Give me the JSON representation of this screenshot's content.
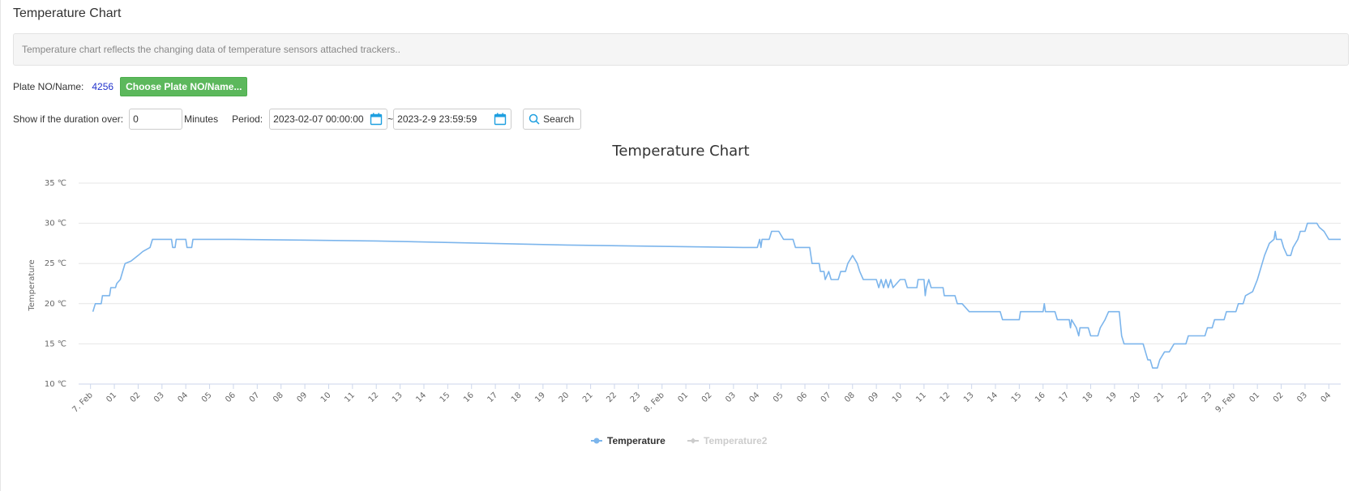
{
  "page": {
    "title": "Temperature Chart",
    "info_text": "Temperature chart reflects the changing data of temperature sensors attached trackers.."
  },
  "plate": {
    "label": "Plate NO/Name:",
    "value": "4256",
    "choose_button": "Choose Plate NO/Name..."
  },
  "filter": {
    "duration_label": "Show if the duration over:",
    "duration_value": "0",
    "minutes_label": "Minutes",
    "period_label": "Period:",
    "start_date": "2023-02-07 00:00:00",
    "separator": "~",
    "end_date": "2023-2-9 23:59:59",
    "search_button": "Search"
  },
  "colors": {
    "series": "#7cb5ec",
    "series_inactive": "#cccccc",
    "grid": "#e6e6e6",
    "button_green": "#5cb85c",
    "calendar": "#1e9fe0"
  },
  "icons": {
    "calendar": "calendar-icon",
    "search": "search-icon"
  },
  "chart_data": {
    "type": "line",
    "title": "Temperature Chart",
    "ylabel": "Temperature",
    "ylim": [
      10,
      35
    ],
    "y_ticks": [
      "10 ℃",
      "15 ℃",
      "20 ℃",
      "25 ℃",
      "30 ℃",
      "35 ℃"
    ],
    "grid": true,
    "legend_position": "bottom-center",
    "x_range_hours": [
      -0.5,
      52.5
    ],
    "x_ticks": [
      {
        "h": 0,
        "label": "7. Feb"
      },
      {
        "h": 1,
        "label": "01"
      },
      {
        "h": 2,
        "label": "02"
      },
      {
        "h": 3,
        "label": "03"
      },
      {
        "h": 4,
        "label": "04"
      },
      {
        "h": 5,
        "label": "05"
      },
      {
        "h": 6,
        "label": "06"
      },
      {
        "h": 7,
        "label": "07"
      },
      {
        "h": 8,
        "label": "08"
      },
      {
        "h": 9,
        "label": "09"
      },
      {
        "h": 10,
        "label": "10"
      },
      {
        "h": 11,
        "label": "11"
      },
      {
        "h": 12,
        "label": "12"
      },
      {
        "h": 13,
        "label": "13"
      },
      {
        "h": 14,
        "label": "14"
      },
      {
        "h": 15,
        "label": "15"
      },
      {
        "h": 16,
        "label": "16"
      },
      {
        "h": 17,
        "label": "17"
      },
      {
        "h": 18,
        "label": "18"
      },
      {
        "h": 19,
        "label": "19"
      },
      {
        "h": 20,
        "label": "20"
      },
      {
        "h": 21,
        "label": "21"
      },
      {
        "h": 22,
        "label": "22"
      },
      {
        "h": 23,
        "label": "23"
      },
      {
        "h": 24,
        "label": "8. Feb"
      },
      {
        "h": 25,
        "label": "01"
      },
      {
        "h": 26,
        "label": "02"
      },
      {
        "h": 27,
        "label": "03"
      },
      {
        "h": 28,
        "label": "04"
      },
      {
        "h": 29,
        "label": "05"
      },
      {
        "h": 30,
        "label": "06"
      },
      {
        "h": 31,
        "label": "07"
      },
      {
        "h": 32,
        "label": "08"
      },
      {
        "h": 33,
        "label": "09"
      },
      {
        "h": 34,
        "label": "10"
      },
      {
        "h": 35,
        "label": "11"
      },
      {
        "h": 36,
        "label": "12"
      },
      {
        "h": 37,
        "label": "13"
      },
      {
        "h": 38,
        "label": "14"
      },
      {
        "h": 39,
        "label": "15"
      },
      {
        "h": 40,
        "label": "16"
      },
      {
        "h": 41,
        "label": "17"
      },
      {
        "h": 42,
        "label": "18"
      },
      {
        "h": 43,
        "label": "19"
      },
      {
        "h": 44,
        "label": "20"
      },
      {
        "h": 45,
        "label": "21"
      },
      {
        "h": 46,
        "label": "22"
      },
      {
        "h": 47,
        "label": "23"
      },
      {
        "h": 48,
        "label": "9. Feb"
      },
      {
        "h": 49,
        "label": "01"
      },
      {
        "h": 50,
        "label": "02"
      },
      {
        "h": 51,
        "label": "03"
      },
      {
        "h": 52,
        "label": "04"
      }
    ],
    "series": [
      {
        "name": "Temperature",
        "visible": true,
        "points": [
          [
            0.1,
            19
          ],
          [
            0.2,
            20
          ],
          [
            0.45,
            20
          ],
          [
            0.5,
            21
          ],
          [
            0.8,
            21
          ],
          [
            0.85,
            22
          ],
          [
            1.05,
            22
          ],
          [
            1.1,
            22.5
          ],
          [
            1.25,
            23
          ],
          [
            1.35,
            24
          ],
          [
            1.45,
            25
          ],
          [
            1.7,
            25.3
          ],
          [
            2.0,
            26
          ],
          [
            2.2,
            26.5
          ],
          [
            2.5,
            27
          ],
          [
            2.6,
            28
          ],
          [
            3.4,
            28
          ],
          [
            3.45,
            27
          ],
          [
            3.55,
            27
          ],
          [
            3.6,
            28
          ],
          [
            4.0,
            28
          ],
          [
            4.05,
            27
          ],
          [
            4.25,
            27
          ],
          [
            4.3,
            28
          ],
          [
            6.0,
            28
          ],
          [
            12.0,
            27.8
          ],
          [
            20.0,
            27.3
          ],
          [
            27.4,
            27
          ],
          [
            28.0,
            27
          ],
          [
            28.1,
            28
          ],
          [
            28.15,
            27
          ],
          [
            28.2,
            28
          ],
          [
            28.5,
            28
          ],
          [
            28.6,
            29
          ],
          [
            28.9,
            29
          ],
          [
            29.1,
            28
          ],
          [
            29.5,
            28
          ],
          [
            29.6,
            27
          ],
          [
            30.2,
            27
          ],
          [
            30.3,
            25
          ],
          [
            30.6,
            25
          ],
          [
            30.65,
            24
          ],
          [
            30.8,
            24
          ],
          [
            30.85,
            23
          ],
          [
            31.0,
            24
          ],
          [
            31.1,
            23
          ],
          [
            31.4,
            23
          ],
          [
            31.5,
            24
          ],
          [
            31.7,
            24
          ],
          [
            31.8,
            25
          ],
          [
            32.0,
            26
          ],
          [
            32.2,
            25
          ],
          [
            32.3,
            24
          ],
          [
            32.45,
            23
          ],
          [
            33.0,
            23
          ],
          [
            33.1,
            22
          ],
          [
            33.2,
            23
          ],
          [
            33.3,
            22
          ],
          [
            33.4,
            23
          ],
          [
            33.5,
            22
          ],
          [
            33.6,
            23
          ],
          [
            33.7,
            22
          ],
          [
            34.0,
            23
          ],
          [
            34.2,
            23
          ],
          [
            34.3,
            22
          ],
          [
            34.7,
            22
          ],
          [
            34.75,
            23
          ],
          [
            35.0,
            23
          ],
          [
            35.05,
            21
          ],
          [
            35.1,
            22
          ],
          [
            35.2,
            23
          ],
          [
            35.3,
            22
          ],
          [
            35.8,
            22
          ],
          [
            35.85,
            21
          ],
          [
            36.3,
            21
          ],
          [
            36.4,
            20
          ],
          [
            36.6,
            20
          ],
          [
            36.9,
            19
          ],
          [
            38.2,
            19
          ],
          [
            38.3,
            18
          ],
          [
            39.0,
            18
          ],
          [
            39.05,
            19
          ],
          [
            40.0,
            19
          ],
          [
            40.05,
            20
          ],
          [
            40.1,
            19
          ],
          [
            40.5,
            19
          ],
          [
            40.6,
            18
          ],
          [
            41.1,
            18
          ],
          [
            41.15,
            17
          ],
          [
            41.2,
            18
          ],
          [
            41.4,
            17
          ],
          [
            41.5,
            16
          ],
          [
            41.55,
            17
          ],
          [
            41.9,
            17
          ],
          [
            42.0,
            16
          ],
          [
            42.3,
            16
          ],
          [
            42.4,
            17
          ],
          [
            42.6,
            18
          ],
          [
            42.75,
            19
          ],
          [
            43.2,
            19
          ],
          [
            43.3,
            16
          ],
          [
            43.4,
            15
          ],
          [
            44.2,
            15
          ],
          [
            44.3,
            14
          ],
          [
            44.4,
            13
          ],
          [
            44.5,
            13
          ],
          [
            44.6,
            12
          ],
          [
            44.8,
            12
          ],
          [
            44.9,
            13
          ],
          [
            45.1,
            14
          ],
          [
            45.3,
            14
          ],
          [
            45.5,
            15
          ],
          [
            46.0,
            15
          ],
          [
            46.1,
            16
          ],
          [
            46.8,
            16
          ],
          [
            46.9,
            17
          ],
          [
            47.1,
            17
          ],
          [
            47.2,
            18
          ],
          [
            47.6,
            18
          ],
          [
            47.7,
            19
          ],
          [
            48.1,
            19
          ],
          [
            48.2,
            20
          ],
          [
            48.4,
            20
          ],
          [
            48.5,
            21
          ],
          [
            48.8,
            21.5
          ],
          [
            49.0,
            23
          ],
          [
            49.3,
            26
          ],
          [
            49.5,
            27.5
          ],
          [
            49.7,
            28
          ],
          [
            49.75,
            29
          ],
          [
            49.8,
            28
          ],
          [
            50.0,
            28
          ],
          [
            50.1,
            27
          ],
          [
            50.25,
            26
          ],
          [
            50.4,
            26
          ],
          [
            50.5,
            27
          ],
          [
            50.7,
            28
          ],
          [
            50.8,
            29
          ],
          [
            51.0,
            29
          ],
          [
            51.1,
            30
          ],
          [
            51.5,
            30
          ],
          [
            51.6,
            29.5
          ],
          [
            51.8,
            29
          ],
          [
            52.0,
            28
          ],
          [
            52.5,
            28
          ]
        ]
      },
      {
        "name": "Temperature2",
        "visible": false,
        "points": []
      }
    ]
  }
}
